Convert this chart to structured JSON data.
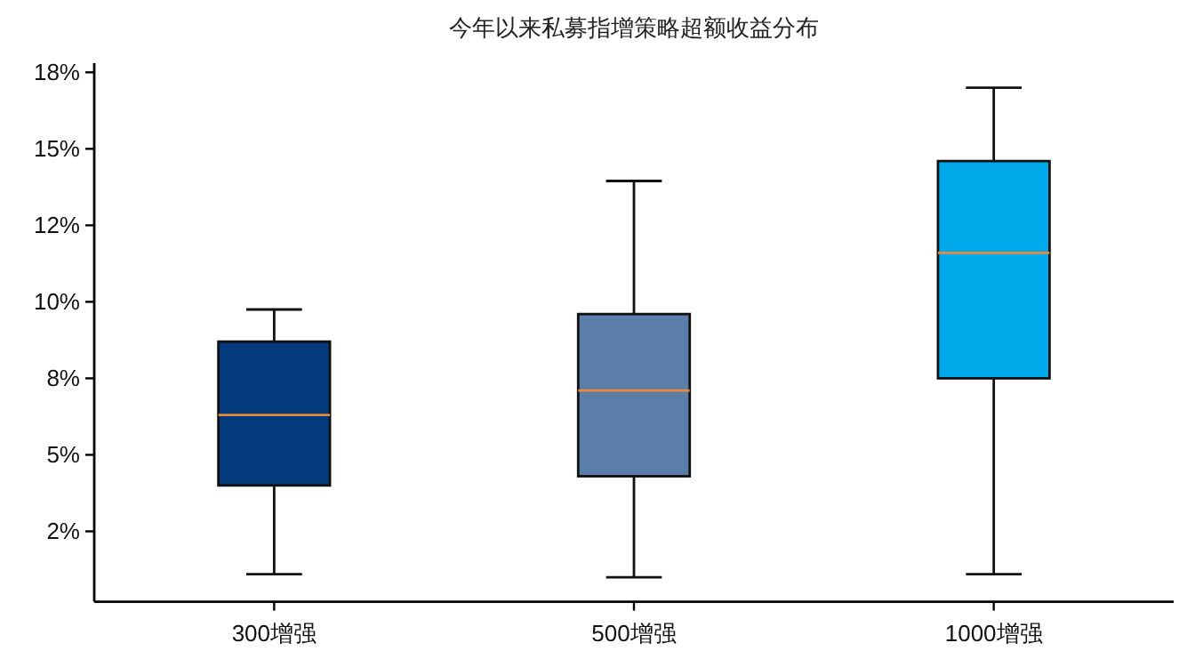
{
  "chart_data": {
    "type": "box",
    "title": "今年以来私募指增策略超额收益分布",
    "categories": [
      "300增强",
      "500增强",
      "1000增强"
    ],
    "colors": [
      "#023a7c",
      "#5b7ea8",
      "#00aaea"
    ],
    "boxes": [
      {
        "low": 1.1,
        "q1": 4.0,
        "median": 6.3,
        "q3": 8.7,
        "high": 9.75
      },
      {
        "low": 1.0,
        "q1": 4.3,
        "median": 7.1,
        "q3": 9.6,
        "high": 13.95
      },
      {
        "low": 1.1,
        "q1": 7.5,
        "median": 11.6,
        "q3": 14.6,
        "high": 17.0
      }
    ],
    "ylim": [
      0.2,
      17.8
    ],
    "yticks": [
      {
        "value": 2.5,
        "label": "2%"
      },
      {
        "value": 5,
        "label": "5%"
      },
      {
        "value": 7.5,
        "label": "8%"
      },
      {
        "value": 10,
        "label": "10%"
      },
      {
        "value": 12.5,
        "label": "12%"
      },
      {
        "value": 15,
        "label": "15%"
      },
      {
        "value": 17.5,
        "label": "18%"
      }
    ],
    "grid": false
  }
}
